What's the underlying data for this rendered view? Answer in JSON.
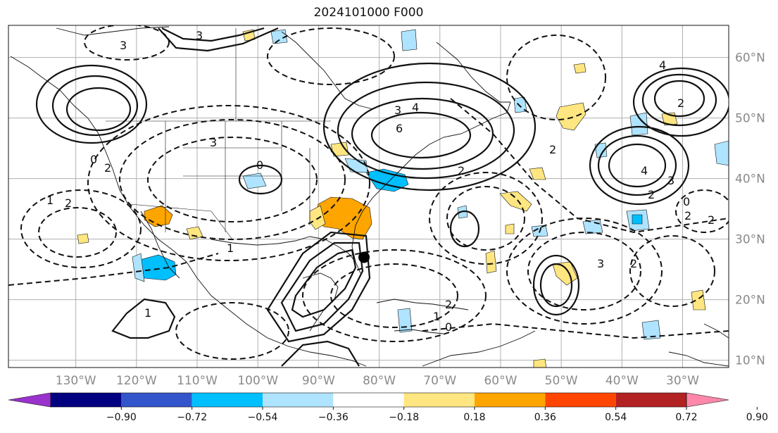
{
  "title": "2024101000 F000",
  "map": {
    "lon_ticks": [
      "130°W",
      "120°W",
      "110°W",
      "100°W",
      "90°W",
      "80°W",
      "70°W",
      "60°W",
      "50°W",
      "40°W",
      "30°W"
    ],
    "lat_ticks": [
      "60°N",
      "50°N",
      "40°N",
      "30°N",
      "20°N",
      "10°N"
    ],
    "storm_marker": {
      "lon": -82.5,
      "lat": 27.0
    }
  },
  "colorbar": {
    "labels": [
      "−0.90",
      "−0.72",
      "−0.54",
      "−0.36",
      "−0.18",
      "0.18",
      "0.36",
      "0.54",
      "0.72",
      "0.90"
    ],
    "colors": [
      "#9933cc",
      "#000080",
      "#3355cc",
      "#00bfff",
      "#aee4ff",
      "#ffffff",
      "#ffe680",
      "#ffa500",
      "#ff4500",
      "#b22222",
      "#ff88aa"
    ],
    "extend": "both"
  },
  "contour_labels": [
    "2",
    "3",
    "4",
    "6",
    "2",
    "1",
    "0",
    "0",
    "2",
    "3",
    "2",
    "1",
    "0",
    "2",
    "4",
    "3",
    "2",
    "0",
    "1",
    "2",
    "3",
    "2",
    "1",
    "3",
    "2",
    "-1"
  ]
}
